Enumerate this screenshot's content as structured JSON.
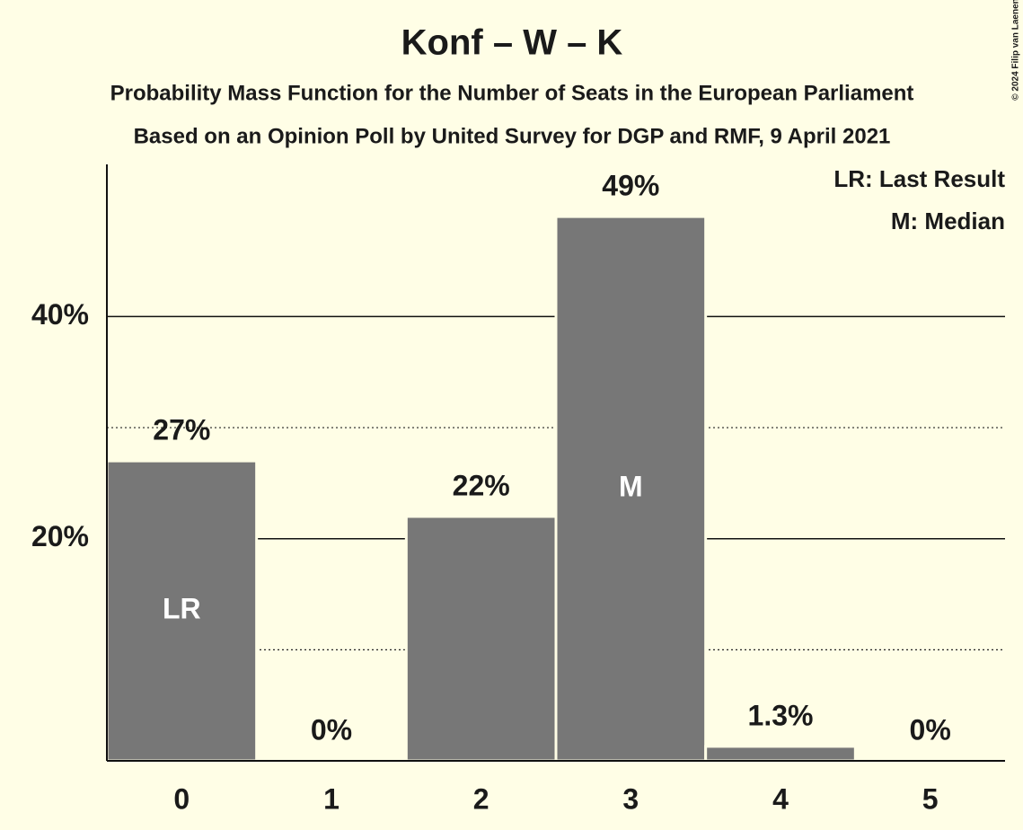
{
  "chart_data": {
    "type": "bar",
    "title": "Konf – W – K",
    "subtitle": "Probability Mass Function for the Number of Seats in the European Parliament",
    "subtitle2": "Based on an Opinion Poll by United Survey for DGP and RMF, 9 April 2021",
    "copyright": "© 2024 Filip van Laenen",
    "categories": [
      "0",
      "1",
      "2",
      "3",
      "4",
      "5"
    ],
    "values": [
      27,
      0,
      22,
      49,
      1.3,
      0
    ],
    "value_labels": [
      "27%",
      "0%",
      "22%",
      "49%",
      "1.3%",
      "0%"
    ],
    "color": "#777777",
    "ylim": [
      0,
      53.7
    ],
    "yticks": [
      {
        "value": 20,
        "label": "20%"
      },
      {
        "value": 40,
        "label": "40%"
      }
    ],
    "minor_yticks": [
      10,
      30
    ],
    "grid": true,
    "bar_annotations": [
      {
        "index": 0,
        "label": "LR"
      },
      {
        "index": 3,
        "label": "M"
      }
    ],
    "legend": [
      "LR: Last Result",
      "M: Median"
    ]
  }
}
